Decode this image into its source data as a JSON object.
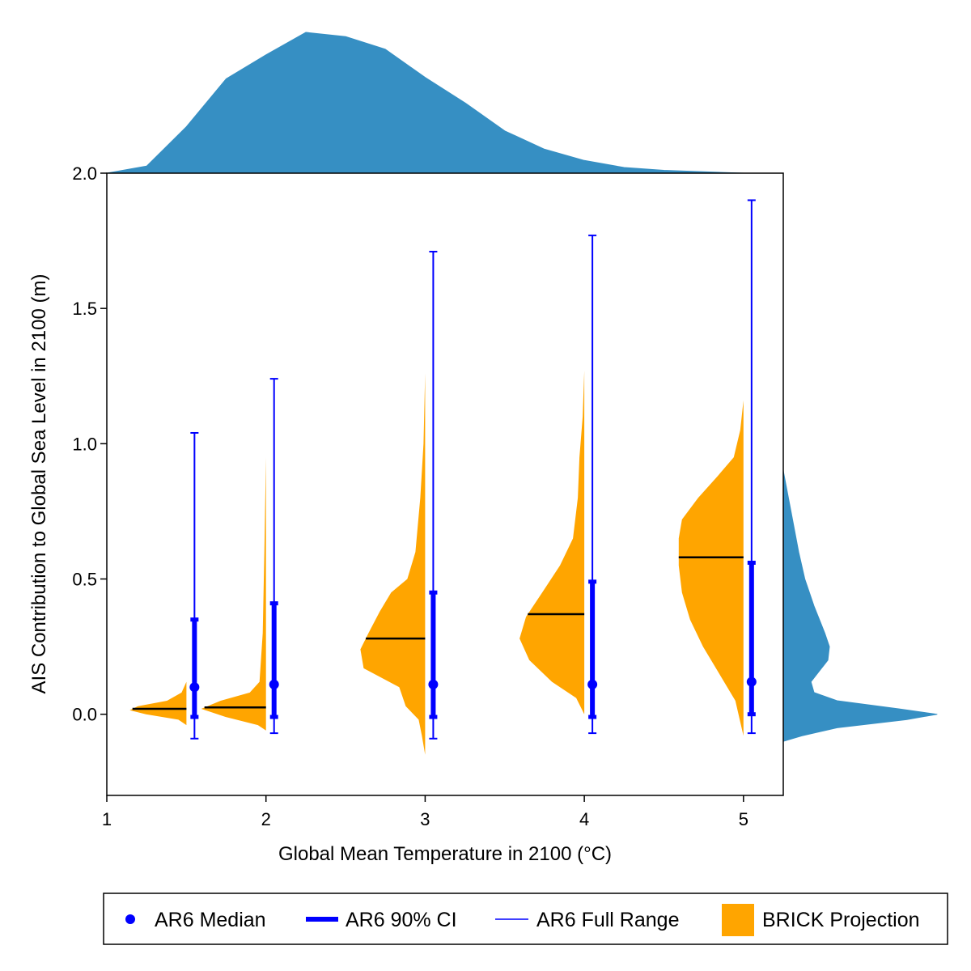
{
  "chart_data": {
    "type": "violin",
    "xlabel": "Global Mean Temperature in 2100 (°C)",
    "ylabel": "AIS Contribution to Global Sea Level in 2100 (m)",
    "xlim": [
      1,
      5.25
    ],
    "ylim": [
      -0.3,
      2.0
    ],
    "xticks": [
      "1",
      "2",
      "3",
      "4",
      "5"
    ],
    "yticks": [
      "0.0",
      "0.5",
      "1.0",
      "1.5",
      "2.0"
    ],
    "legend": {
      "placement": "bottom",
      "entries": [
        "AR6 Median",
        "AR6 90% CI",
        "AR6 Full Range",
        "BRICK Projection"
      ]
    },
    "colors": {
      "ar6": "#0000ff",
      "brick": "#ffa500",
      "marginal": "#368fc3"
    },
    "ar6": [
      {
        "temperature": 1.5,
        "median": 0.1,
        "ci90": [
          -0.01,
          0.35
        ],
        "range": [
          -0.09,
          1.04
        ]
      },
      {
        "temperature": 2.0,
        "median": 0.11,
        "ci90": [
          -0.01,
          0.41
        ],
        "range": [
          -0.07,
          1.24
        ]
      },
      {
        "temperature": 3.0,
        "median": 0.11,
        "ci90": [
          -0.01,
          0.45
        ],
        "range": [
          -0.09,
          1.71
        ]
      },
      {
        "temperature": 4.0,
        "median": 0.11,
        "ci90": [
          -0.01,
          0.49
        ],
        "range": [
          -0.07,
          1.77
        ]
      },
      {
        "temperature": 5.0,
        "median": 0.12,
        "ci90": [
          0.0,
          0.56
        ],
        "range": [
          -0.07,
          1.9
        ]
      }
    ],
    "brick": [
      {
        "temperature": 1.5,
        "median": 0.02,
        "profile": [
          [
            -0.04,
            0.0
          ],
          [
            -0.02,
            0.05
          ],
          [
            0.0,
            0.25
          ],
          [
            0.015,
            0.35
          ],
          [
            0.03,
            0.3
          ],
          [
            0.05,
            0.12
          ],
          [
            0.08,
            0.03
          ],
          [
            0.12,
            0.0
          ]
        ]
      },
      {
        "temperature": 2.0,
        "median": 0.025,
        "profile": [
          [
            -0.06,
            0.0
          ],
          [
            -0.04,
            0.05
          ],
          [
            -0.01,
            0.25
          ],
          [
            0.02,
            0.4
          ],
          [
            0.05,
            0.28
          ],
          [
            0.08,
            0.1
          ],
          [
            0.12,
            0.04
          ],
          [
            0.3,
            0.02
          ],
          [
            0.6,
            0.01
          ],
          [
            0.95,
            0.0
          ]
        ]
      },
      {
        "temperature": 3.0,
        "median": 0.28,
        "profile": [
          [
            -0.15,
            0.0
          ],
          [
            -0.08,
            0.02
          ],
          [
            -0.02,
            0.04
          ],
          [
            0.03,
            0.12
          ],
          [
            0.1,
            0.16
          ],
          [
            0.17,
            0.38
          ],
          [
            0.24,
            0.4
          ],
          [
            0.3,
            0.35
          ],
          [
            0.38,
            0.28
          ],
          [
            0.45,
            0.21
          ],
          [
            0.5,
            0.11
          ],
          [
            0.6,
            0.06
          ],
          [
            0.8,
            0.03
          ],
          [
            1.0,
            0.01
          ],
          [
            1.26,
            0.0
          ]
        ]
      },
      {
        "temperature": 4.0,
        "median": 0.37,
        "profile": [
          [
            0.0,
            0.0
          ],
          [
            0.06,
            0.05
          ],
          [
            0.12,
            0.2
          ],
          [
            0.2,
            0.34
          ],
          [
            0.28,
            0.4
          ],
          [
            0.36,
            0.36
          ],
          [
            0.45,
            0.26
          ],
          [
            0.55,
            0.15
          ],
          [
            0.65,
            0.07
          ],
          [
            0.8,
            0.04
          ],
          [
            0.95,
            0.03
          ],
          [
            1.1,
            0.01
          ],
          [
            1.27,
            0.0
          ]
        ]
      },
      {
        "temperature": 5.0,
        "median": 0.58,
        "profile": [
          [
            -0.08,
            0.0
          ],
          [
            0.05,
            0.05
          ],
          [
            0.15,
            0.15
          ],
          [
            0.25,
            0.25
          ],
          [
            0.35,
            0.33
          ],
          [
            0.45,
            0.38
          ],
          [
            0.55,
            0.4
          ],
          [
            0.65,
            0.4
          ],
          [
            0.72,
            0.38
          ],
          [
            0.8,
            0.28
          ],
          [
            0.88,
            0.16
          ],
          [
            0.95,
            0.06
          ],
          [
            1.05,
            0.02
          ],
          [
            1.16,
            0.0
          ]
        ]
      }
    ],
    "temperature_marginal": {
      "x": [
        1.0,
        1.25,
        1.5,
        1.75,
        2.0,
        2.25,
        2.5,
        2.75,
        3.0,
        3.25,
        3.5,
        3.75,
        4.0,
        4.25,
        4.5,
        4.75,
        5.0
      ],
      "density": [
        0.0,
        0.05,
        0.33,
        0.67,
        0.84,
        1.0,
        0.97,
        0.88,
        0.68,
        0.5,
        0.3,
        0.17,
        0.09,
        0.04,
        0.02,
        0.01,
        0.0
      ]
    },
    "sea_level_marginal": {
      "y": [
        -0.1,
        -0.08,
        -0.05,
        -0.02,
        0.0,
        0.02,
        0.05,
        0.08,
        0.12,
        0.2,
        0.25,
        0.3,
        0.4,
        0.5,
        0.6,
        0.75,
        0.9
      ],
      "density": [
        0.0,
        0.12,
        0.35,
        0.8,
        1.0,
        0.75,
        0.35,
        0.2,
        0.18,
        0.29,
        0.3,
        0.27,
        0.2,
        0.14,
        0.1,
        0.05,
        0.0
      ]
    }
  }
}
